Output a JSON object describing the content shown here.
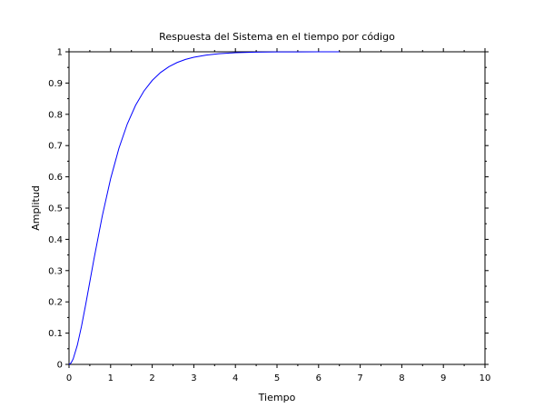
{
  "chart_data": {
    "type": "line",
    "title": "Respuesta del Sistema en el tiempo por código",
    "xlabel": "Tiempo",
    "ylabel": "Amplitud",
    "xlim": [
      0,
      10
    ],
    "ylim": [
      0,
      1
    ],
    "x_ticks": [
      "0",
      "1",
      "2",
      "3",
      "4",
      "5",
      "6",
      "7",
      "8",
      "9",
      "10"
    ],
    "y_ticks": [
      "0",
      "0.1",
      "0.2",
      "0.3",
      "0.4",
      "0.5",
      "0.6",
      "0.7",
      "0.8",
      "0.9",
      "1"
    ],
    "grid": false,
    "series": [
      {
        "color": "#0000ff",
        "x": [
          0,
          0.05,
          0.1,
          0.2,
          0.3,
          0.4,
          0.5,
          0.6,
          0.8,
          1.0,
          1.2,
          1.4,
          1.6,
          1.8,
          2.0,
          2.2,
          2.4,
          2.6,
          2.8,
          3.0,
          3.3,
          3.6,
          4.0,
          4.5,
          5.0,
          5.5,
          6.0,
          6.5
        ],
        "y": [
          0,
          0.0047,
          0.0175,
          0.0616,
          0.1219,
          0.1912,
          0.2642,
          0.3374,
          0.4751,
          0.594,
          0.6916,
          0.7689,
          0.8288,
          0.8743,
          0.9084,
          0.9337,
          0.9523,
          0.9658,
          0.9756,
          0.9826,
          0.9895,
          0.9937,
          0.997,
          0.9988,
          0.9995,
          0.9998,
          0.9999,
          1.0
        ]
      }
    ]
  }
}
